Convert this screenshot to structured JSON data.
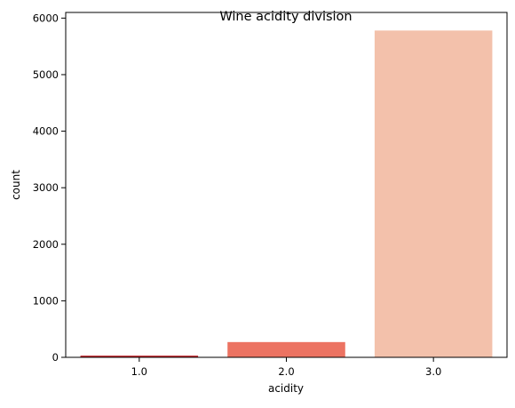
{
  "chart_data": {
    "type": "bar",
    "title": "Wine acidity division",
    "xlabel": "acidity",
    "ylabel": "count",
    "categories": [
      "1.0",
      "2.0",
      "3.0"
    ],
    "values": [
      30,
      270,
      5780
    ],
    "colors": [
      "#c0282d",
      "#ec7362",
      "#f3c1ab"
    ],
    "ylim": [
      0,
      6100
    ],
    "yticks": [
      0,
      1000,
      2000,
      3000,
      4000,
      5000,
      6000
    ],
    "grid": false,
    "legend": "none"
  }
}
